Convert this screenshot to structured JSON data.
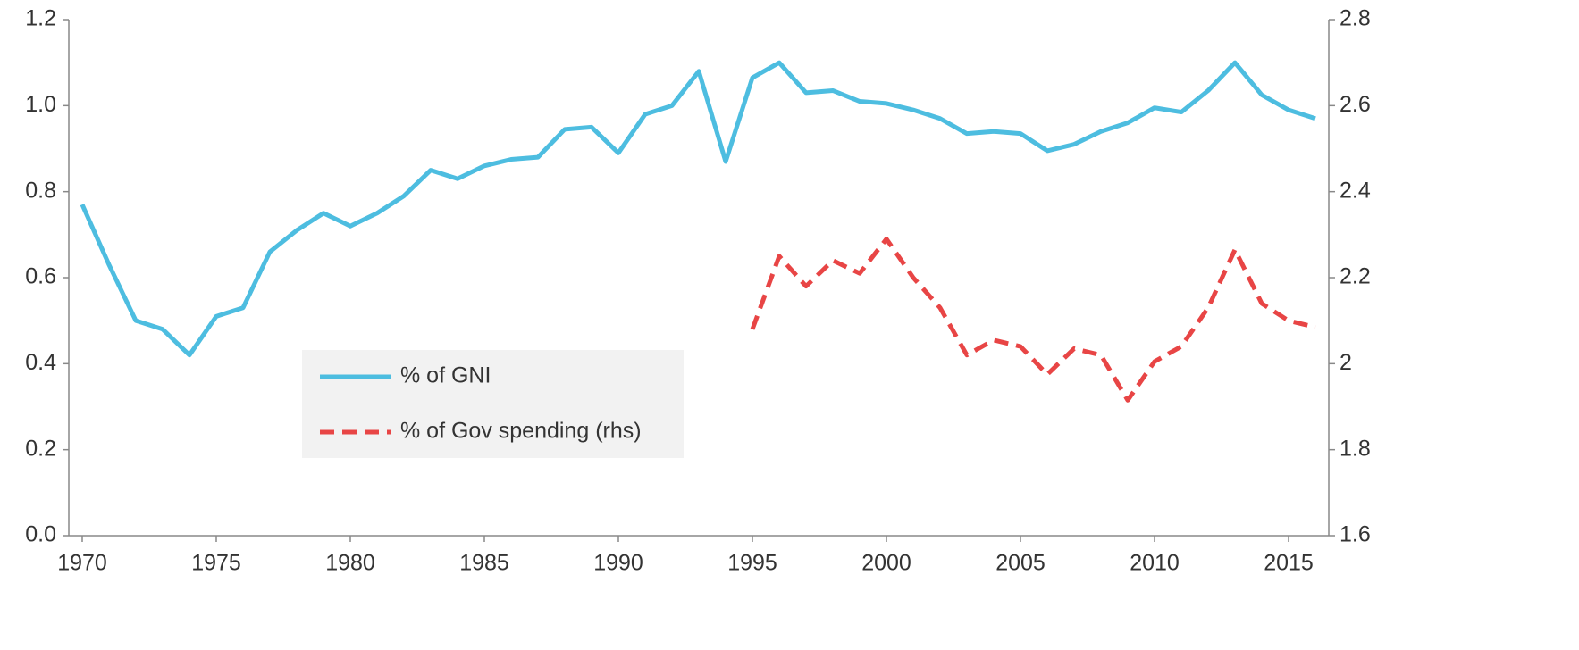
{
  "chart_data": {
    "type": "line",
    "x": [
      1970,
      1971,
      1972,
      1973,
      1974,
      1975,
      1976,
      1977,
      1978,
      1979,
      1980,
      1981,
      1982,
      1983,
      1984,
      1985,
      1986,
      1987,
      1988,
      1989,
      1990,
      1991,
      1992,
      1993,
      1994,
      1995,
      1996,
      1997,
      1998,
      1999,
      2000,
      2001,
      2002,
      2003,
      2004,
      2005,
      2006,
      2007,
      2008,
      2009,
      2010,
      2011,
      2012,
      2013,
      2014,
      2015,
      2016
    ],
    "xlim": [
      1969.5,
      2016.5
    ],
    "xticks": [
      1970,
      1975,
      1980,
      1985,
      1990,
      1995,
      2000,
      2005,
      2010,
      2015
    ],
    "ylim": [
      0,
      1.2
    ],
    "yticks": [
      {
        "value": 0,
        "label": "0.0"
      },
      0.2,
      0.4,
      0.6,
      0.8,
      {
        "value": 1,
        "label": "1.0"
      },
      1.2
    ],
    "y2lim": [
      1.6,
      2.8
    ],
    "y2ticks": [
      1.6,
      1.8,
      2,
      2.2,
      2.4,
      2.6,
      2.8
    ],
    "grid": false,
    "legend": "center-left",
    "series": [
      {
        "name": "% of GNI",
        "color": "#4dbde0",
        "dash": false,
        "values": [
          0.77,
          0.63,
          0.5,
          0.48,
          0.42,
          0.51,
          0.53,
          0.66,
          0.71,
          0.75,
          0.72,
          0.75,
          0.79,
          0.85,
          0.83,
          0.86,
          0.875,
          0.88,
          0.945,
          0.95,
          0.89,
          0.98,
          1.0,
          1.08,
          0.87,
          1.065,
          1.1,
          1.03,
          1.035,
          1.01,
          1.005,
          0.99,
          0.97,
          0.935,
          0.94,
          0.935,
          0.895,
          0.91,
          0.94,
          0.96,
          0.995,
          0.985,
          1.035,
          1.1,
          1.025,
          0.99,
          0.97
        ]
      },
      {
        "name": "% of Gov spending (rhs)",
        "color": "#e84545",
        "dash": true,
        "axis": "y2",
        "values": [
          null,
          null,
          null,
          null,
          null,
          null,
          null,
          null,
          null,
          null,
          null,
          null,
          null,
          null,
          null,
          null,
          null,
          null,
          null,
          null,
          null,
          null,
          null,
          null,
          null,
          2.08,
          2.25,
          2.18,
          2.24,
          2.21,
          2.29,
          2.2,
          2.13,
          2.02,
          2.055,
          2.04,
          1.975,
          2.035,
          2.02,
          1.915,
          2.005,
          2.04,
          2.13,
          2.265,
          2.14,
          2.1,
          2.085
        ]
      }
    ]
  }
}
